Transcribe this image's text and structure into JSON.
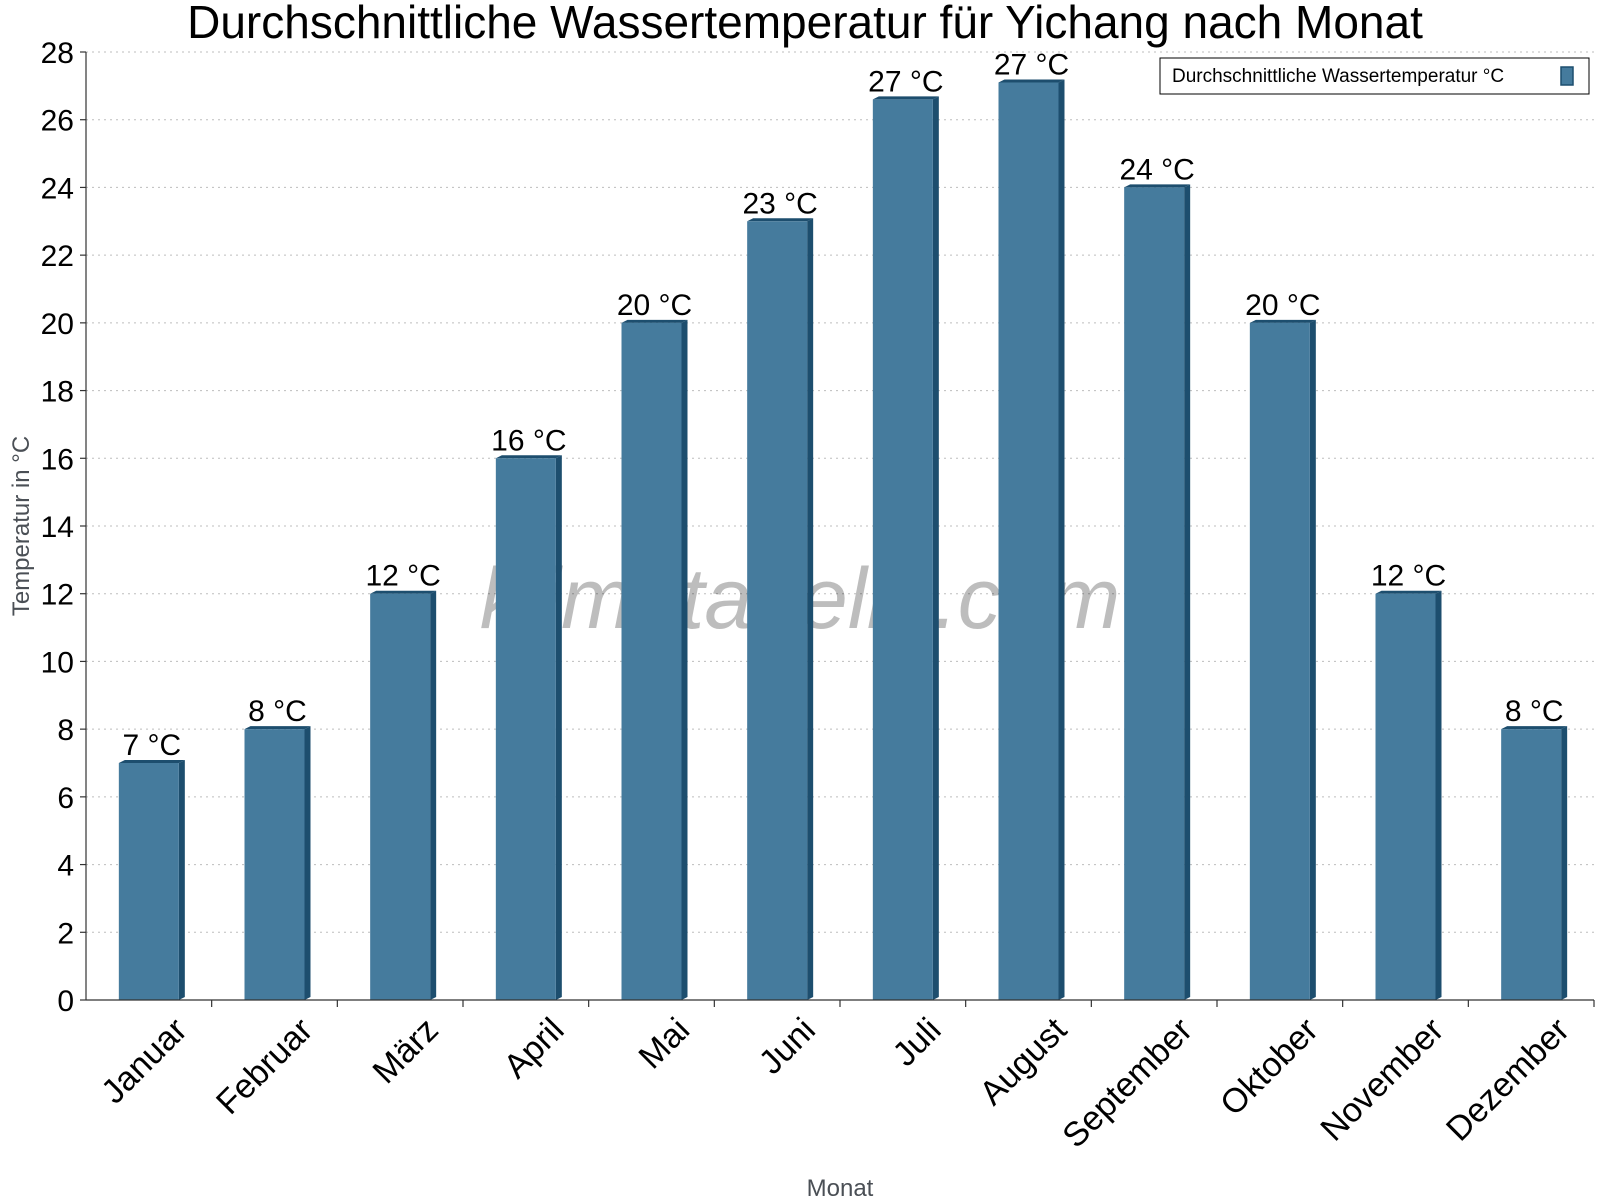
{
  "chart_data": {
    "type": "bar",
    "title": "Durchschnittliche Wassertemperatur für Yichang nach Monat",
    "xlabel": "Monat",
    "ylabel": "Temperatur in °C",
    "ylim": [
      0,
      28
    ],
    "yticks": [
      "0",
      "2",
      "4",
      "6",
      "8",
      "10",
      "12",
      "14",
      "16",
      "18",
      "20",
      "22",
      "24",
      "26",
      "28"
    ],
    "grid": true,
    "legend_position": "top-right",
    "categories": [
      "Januar",
      "Februar",
      "März",
      "April",
      "Mai",
      "Juni",
      "Juli",
      "August",
      "September",
      "Oktober",
      "November",
      "Dezember"
    ],
    "series": [
      {
        "name": "Durchschnittliche Wassertemperatur °C",
        "values": [
          7,
          8,
          12,
          16,
          20,
          23,
          26.6,
          27.1,
          24,
          20,
          12,
          8
        ],
        "labels": [
          "7 °C",
          "8 °C",
          "12 °C",
          "16 °C",
          "20 °C",
          "23 °C",
          "27 °C",
          "27 °C",
          "24 °C",
          "20 °C",
          "12 °C",
          "8 °C"
        ]
      }
    ],
    "colors": {
      "bar": "#457b9d",
      "bar_side": "#1d4e6e"
    },
    "watermark": "klimatabelle.com"
  }
}
